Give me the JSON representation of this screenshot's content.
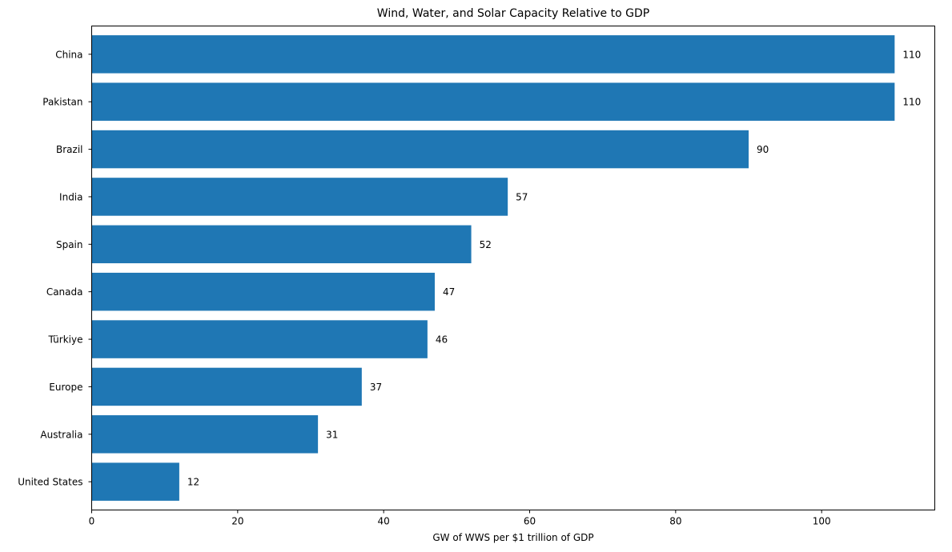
{
  "chart_data": {
    "type": "bar",
    "orientation": "horizontal",
    "title": "Wind, Water, and Solar Capacity Relative to GDP",
    "xlabel": "GW of WWS per $1 trillion of GDP",
    "ylabel": "",
    "categories": [
      "China",
      "Pakistan",
      "Brazil",
      "India",
      "Spain",
      "Canada",
      "Türkiye",
      "Europe",
      "Australia",
      "United States"
    ],
    "values": [
      110,
      110,
      90,
      57,
      52,
      47,
      46,
      37,
      31,
      12
    ],
    "data_labels": [
      "110",
      "110",
      "90",
      "57",
      "52",
      "47",
      "46",
      "37",
      "31",
      "12"
    ],
    "xlim": [
      0,
      115.5
    ],
    "xticks": [
      0,
      20,
      40,
      60,
      80,
      100
    ],
    "xtick_labels": [
      "0",
      "20",
      "40",
      "60",
      "80",
      "100"
    ],
    "bar_color": "#1f77b4",
    "grid": false,
    "legend": "none"
  }
}
